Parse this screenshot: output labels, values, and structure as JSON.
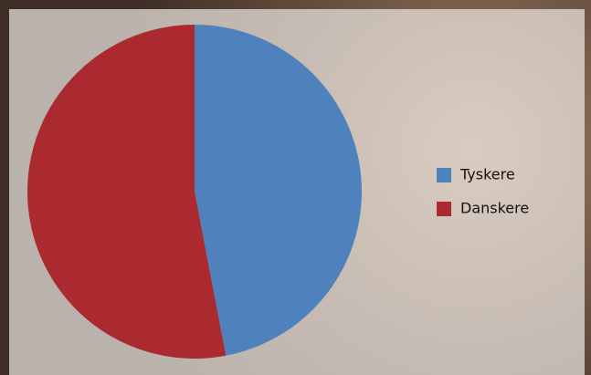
{
  "chart_data": {
    "type": "pie",
    "categories": [
      "Tyskere",
      "Danskere"
    ],
    "values": [
      47,
      53
    ],
    "colors": [
      "#4f81bd",
      "#ab2a2f"
    ],
    "legend": "right"
  }
}
